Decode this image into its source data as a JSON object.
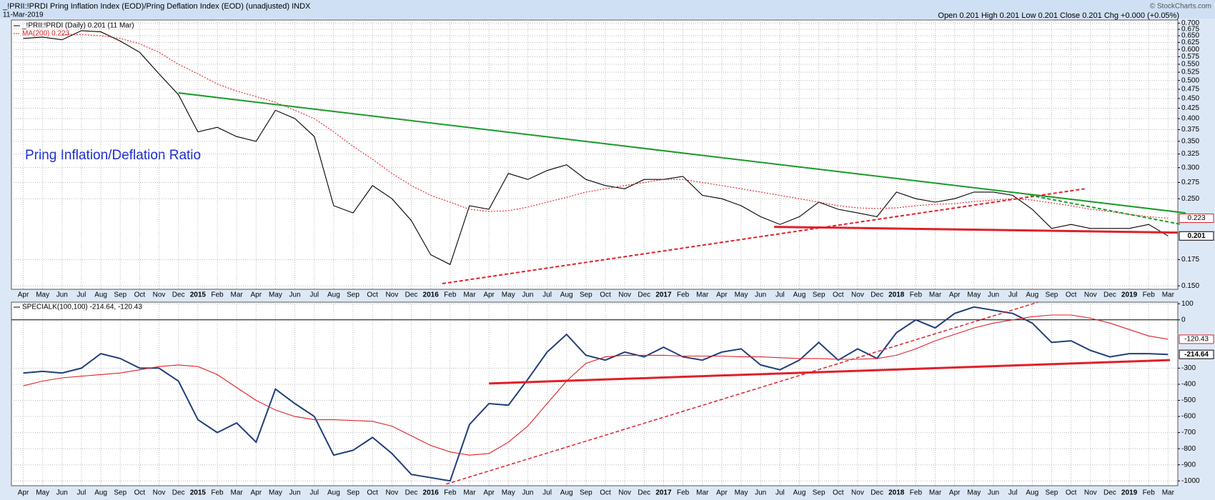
{
  "chart_data": [
    {
      "type": "line",
      "log_scale": true,
      "grid": true,
      "title": "_!PRII:!PRDI Pring Inflation Index (EOD)/Pring Deflation Index (EOD) (unadjusted) INDX",
      "date": "11-Mar-2019",
      "quote": "Open 0.201 High 0.201 Low 0.201 Close 0.201 Chg +0.000 (+0.05%)",
      "copyright": "© StockCharts.com",
      "annotation": "Pring Inflation/Deflation Ratio",
      "categories": [
        "Apr",
        "May",
        "Jun",
        "Jul",
        "Aug",
        "Sep",
        "Oct",
        "Nov",
        "Dec",
        "2015",
        "Feb",
        "Mar",
        "Apr",
        "May",
        "Jun",
        "Jul",
        "Aug",
        "Sep",
        "Oct",
        "Nov",
        "Dec",
        "2016",
        "Feb",
        "Mar",
        "Apr",
        "May",
        "Jun",
        "Jul",
        "Aug",
        "Sep",
        "Oct",
        "Nov",
        "Dec",
        "2017",
        "Feb",
        "Mar",
        "Apr",
        "May",
        "Jun",
        "Jul",
        "Aug",
        "Sep",
        "Oct",
        "Nov",
        "Dec",
        "2018",
        "Feb",
        "Mar",
        "Apr",
        "May",
        "Jun",
        "Jul",
        "Aug",
        "Sep",
        "Oct",
        "Nov",
        "Dec",
        "2019",
        "Feb",
        "Mar"
      ],
      "series": [
        {
          "name": "_!PRII:!PRDI (Daily) 0.201 (11 Mar)",
          "color": "#000000",
          "values": [
            0.64,
            0.645,
            0.635,
            0.67,
            0.665,
            0.63,
            0.59,
            0.52,
            0.46,
            0.37,
            0.38,
            0.36,
            0.35,
            0.42,
            0.4,
            0.36,
            0.24,
            0.23,
            0.27,
            0.25,
            0.22,
            0.18,
            0.17,
            0.24,
            0.235,
            0.29,
            0.28,
            0.295,
            0.305,
            0.28,
            0.27,
            0.265,
            0.28,
            0.28,
            0.285,
            0.255,
            0.25,
            0.24,
            0.225,
            0.215,
            0.225,
            0.245,
            0.235,
            0.23,
            0.225,
            0.26,
            0.25,
            0.245,
            0.25,
            0.26,
            0.26,
            0.255,
            0.235,
            0.21,
            0.215,
            0.21,
            0.21,
            0.21,
            0.215,
            0.201
          ],
          "box": "#000000"
        },
        {
          "name": "MA(200) 0.223",
          "color": "#e0202a",
          "dash": true,
          "values": [
            null,
            null,
            0.655,
            0.655,
            0.65,
            0.64,
            0.62,
            0.59,
            0.55,
            0.52,
            0.49,
            0.47,
            0.455,
            0.44,
            0.42,
            0.4,
            0.37,
            0.34,
            0.315,
            0.29,
            0.27,
            0.255,
            0.245,
            0.235,
            0.232,
            0.233,
            0.238,
            0.245,
            0.252,
            0.26,
            0.265,
            0.27,
            0.275,
            0.28,
            0.28,
            0.275,
            0.27,
            0.265,
            0.26,
            0.255,
            0.25,
            0.245,
            0.24,
            0.237,
            0.236,
            0.237,
            0.24,
            0.242,
            0.243,
            0.246,
            0.248,
            0.25,
            0.248,
            0.244,
            0.24,
            0.235,
            0.232,
            0.228,
            0.225,
            0.223
          ],
          "box": "#e0202a"
        }
      ],
      "trendlines": [
        {
          "color": "#1a9a2a",
          "width": 2,
          "dash": false,
          "points": [
            [
              8,
              0.465
            ],
            [
              59.9,
              0.23
            ]
          ]
        },
        {
          "color": "#e0202a",
          "width": 2,
          "dash": true,
          "points": [
            [
              21.6,
              0.152
            ],
            [
              54.7,
              0.265
            ]
          ]
        },
        {
          "color": "#1a9a2a",
          "width": 2,
          "dash": true,
          "points": [
            [
              51.9,
              0.255
            ],
            [
              59.7,
              0.215
            ]
          ]
        },
        {
          "color": "#e0202a",
          "width": 3,
          "dash": false,
          "points": [
            [
              38.7,
              0.212
            ],
            [
              59.5,
              0.205
            ]
          ]
        }
      ],
      "ylim": [
        0.147,
        0.713
      ],
      "yticks": [
        {
          "value": 0.7,
          "label": "0.700"
        },
        0.675,
        {
          "value": 0.65,
          "label": "0.650"
        },
        0.625,
        {
          "value": 0.6,
          "label": "0.600"
        },
        0.575,
        {
          "value": 0.55,
          "label": "0.550"
        },
        0.525,
        {
          "value": 0.5,
          "label": "0.500"
        },
        0.475,
        {
          "value": 0.45,
          "label": "0.450"
        },
        0.425,
        {
          "value": 0.4,
          "label": "0.400"
        },
        0.375,
        {
          "value": 0.35,
          "label": "0.350"
        },
        0.325,
        {
          "value": 0.3,
          "label": "0.300"
        },
        0.275,
        {
          "value": 0.25,
          "label": "0.250"
        },
        0.175,
        {
          "value": 0.15,
          "label": "0.150"
        }
      ]
    },
    {
      "type": "line",
      "log_scale": false,
      "grid": true,
      "zero_line": true,
      "legend": "SPECIALK(100,100) -214.64, -120.43",
      "categories": [
        "Apr",
        "May",
        "Jun",
        "Jul",
        "Aug",
        "Sep",
        "Oct",
        "Nov",
        "Dec",
        "2015",
        "Feb",
        "Mar",
        "Apr",
        "May",
        "Jun",
        "Jul",
        "Aug",
        "Sep",
        "Oct",
        "Nov",
        "Dec",
        "2016",
        "Feb",
        "Mar",
        "Apr",
        "May",
        "Jun",
        "Jul",
        "Aug",
        "Sep",
        "Oct",
        "Nov",
        "Dec",
        "2017",
        "Feb",
        "Mar",
        "Apr",
        "May",
        "Jun",
        "Jul",
        "Aug",
        "Sep",
        "Oct",
        "Nov",
        "Dec",
        "2018",
        "Feb",
        "Mar",
        "Apr",
        "May",
        "Jun",
        "Jul",
        "Aug",
        "Sep",
        "Oct",
        "Nov",
        "Dec",
        "2019",
        "Feb",
        "Mar"
      ],
      "series": [
        {
          "name": "SPECIALK(100,100)",
          "color": "#1f3f7a",
          "values": [
            -330,
            -320,
            -330,
            -300,
            -210,
            -240,
            -300,
            -300,
            -380,
            -620,
            -700,
            -640,
            -760,
            -430,
            -520,
            -600,
            -840,
            -810,
            -730,
            -830,
            -960,
            -980,
            -1000,
            -650,
            -520,
            -530,
            -370,
            -200,
            -90,
            -220,
            -250,
            -200,
            -230,
            -170,
            -230,
            -250,
            -200,
            -180,
            -280,
            -310,
            -250,
            -140,
            -250,
            -180,
            -240,
            -80,
            0,
            -50,
            40,
            80,
            60,
            40,
            -20,
            -140,
            -130,
            -190,
            -230,
            -210,
            -210,
            -214.64
          ],
          "box": "#000000"
        },
        {
          "name": "Signal",
          "color": "#e0202a",
          "values": [
            -410,
            -380,
            -360,
            -350,
            -340,
            -330,
            -310,
            -290,
            -280,
            -290,
            -340,
            -420,
            -500,
            -560,
            -600,
            -620,
            -620,
            -625,
            -630,
            -660,
            -720,
            -780,
            -820,
            -840,
            -830,
            -760,
            -660,
            -520,
            -380,
            -270,
            -230,
            -220,
            -220,
            -220,
            -225,
            -225,
            -225,
            -230,
            -230,
            -235,
            -240,
            -240,
            -245,
            -245,
            -240,
            -220,
            -180,
            -130,
            -90,
            -50,
            -20,
            0,
            20,
            30,
            30,
            10,
            -20,
            -60,
            -100,
            -120.43
          ],
          "box": "#e0202a"
        }
      ],
      "trendlines": [
        {
          "color": "#e0202a",
          "width": 3,
          "dash": false,
          "points": [
            [
              24.0,
              -395
            ],
            [
              59.1,
              -250
            ]
          ]
        },
        {
          "color": "#e0202a",
          "width": 1.5,
          "dash": true,
          "points": [
            [
              21.8,
              -1020
            ],
            [
              52.3,
              110
            ]
          ]
        }
      ],
      "ylim": [
        -1030,
        110
      ],
      "yticks": [
        100,
        0,
        -300,
        -400,
        -500,
        -600,
        -700,
        -800,
        -900,
        -1000
      ]
    }
  ]
}
